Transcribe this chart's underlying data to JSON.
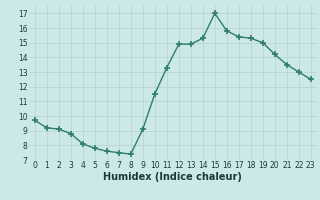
{
  "x": [
    0,
    1,
    2,
    3,
    4,
    5,
    6,
    7,
    8,
    9,
    10,
    11,
    12,
    13,
    14,
    15,
    16,
    17,
    18,
    19,
    20,
    21,
    22,
    23
  ],
  "y": [
    9.7,
    9.2,
    9.1,
    8.8,
    8.1,
    7.8,
    7.6,
    7.5,
    7.4,
    9.1,
    11.5,
    13.3,
    14.9,
    14.9,
    15.3,
    17.0,
    15.8,
    15.4,
    15.3,
    15.0,
    14.2,
    13.5,
    13.0,
    12.5
  ],
  "xlabel": "Humidex (Indice chaleur)",
  "ylim": [
    7,
    17.5
  ],
  "xlim": [
    -0.5,
    23.5
  ],
  "yticks": [
    7,
    8,
    9,
    10,
    11,
    12,
    13,
    14,
    15,
    16,
    17
  ],
  "xticks": [
    0,
    1,
    2,
    3,
    4,
    5,
    6,
    7,
    8,
    9,
    10,
    11,
    12,
    13,
    14,
    15,
    16,
    17,
    18,
    19,
    20,
    21,
    22,
    23
  ],
  "line_color": "#2e7d6e",
  "marker": "+",
  "bg_color": "#cce8e8",
  "grid_color": "#b8d4d4",
  "tick_color": "#1a3a3a",
  "xlabel_color": "#1a3a3a",
  "xlabel_fontsize": 7,
  "tick_fontsize": 5.5,
  "linewidth": 1.0,
  "markersize": 4,
  "markeredgewidth": 1.2
}
